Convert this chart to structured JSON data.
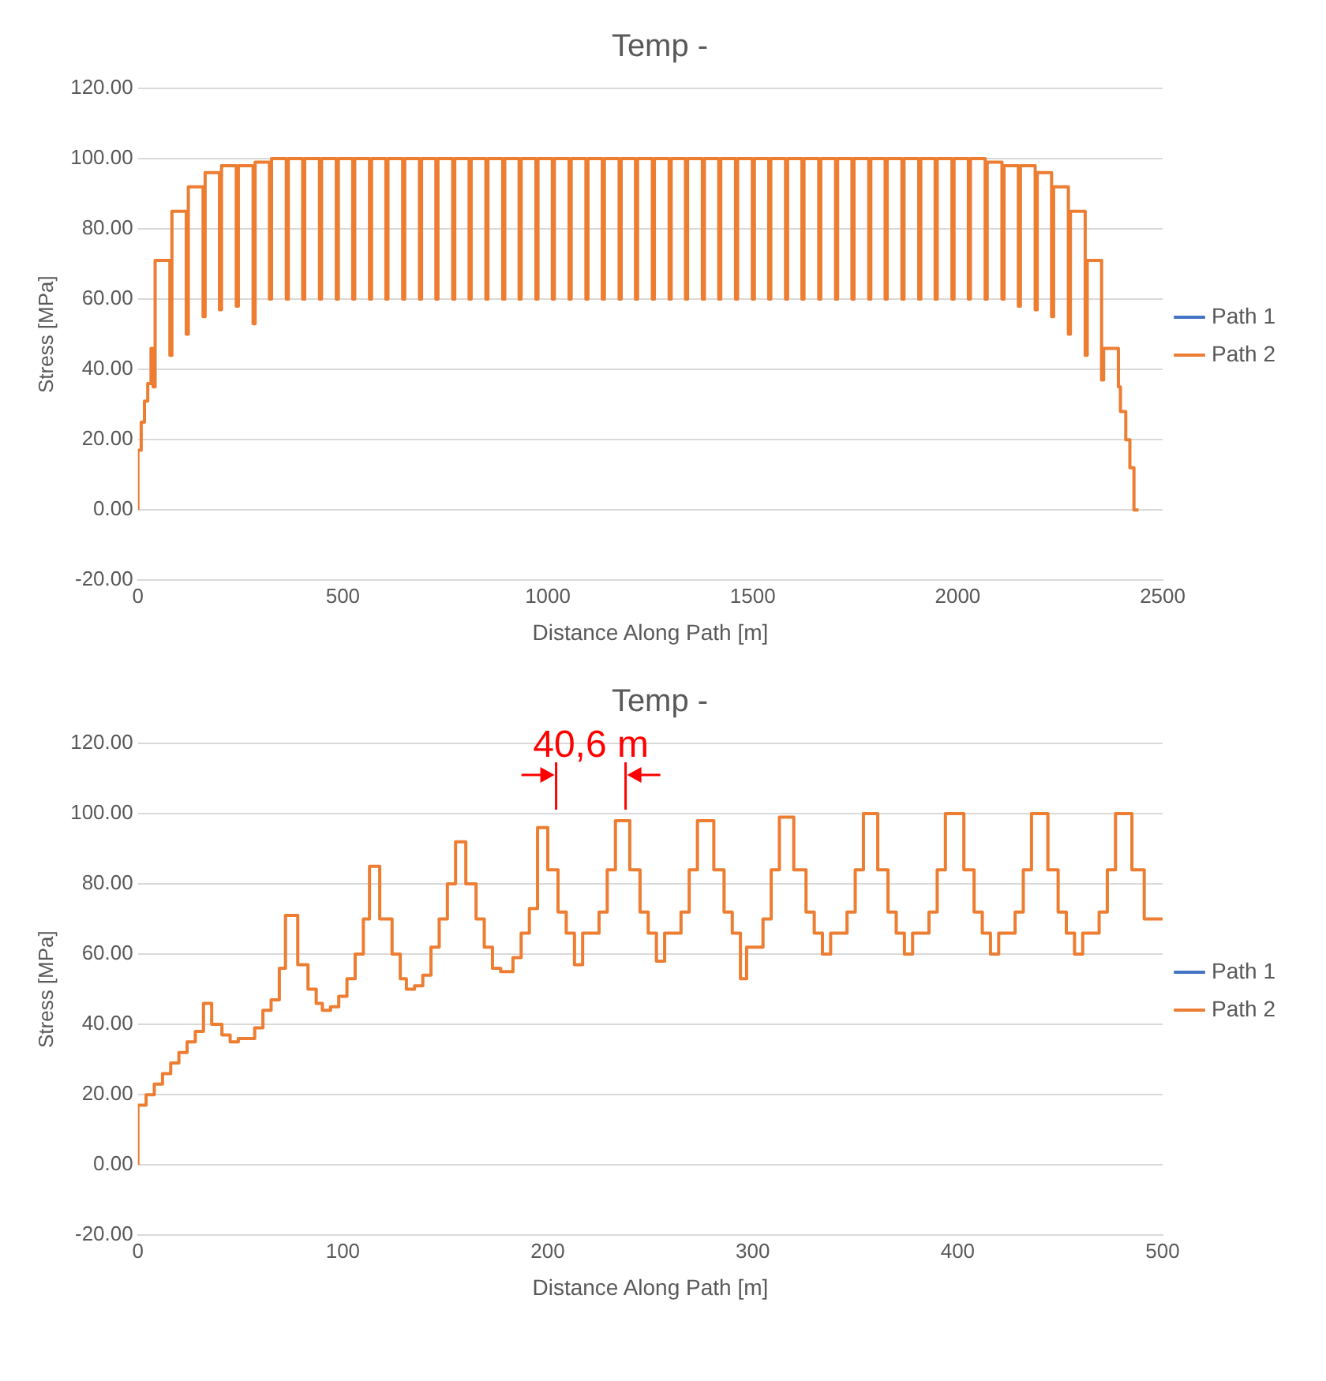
{
  "chart_data": [
    {
      "type": "step",
      "title": "Temp -",
      "xlabel": "Distance Along Path [m]",
      "ylabel": "Stress [MPa]",
      "xlim": [
        0,
        2500
      ],
      "xticks": [
        0,
        500,
        1000,
        1500,
        2000,
        2500
      ],
      "ylim": [
        -20,
        120
      ],
      "yticks": [
        {
          "value": -20,
          "label": "-20.00"
        },
        {
          "value": 0,
          "label": "0.00"
        },
        {
          "value": 20,
          "label": "20.00"
        },
        {
          "value": 40,
          "label": "40.00"
        },
        {
          "value": 60,
          "label": "60.00"
        },
        {
          "value": 80,
          "label": "80.00"
        },
        {
          "value": 100,
          "label": "100.00"
        },
        {
          "value": 120,
          "label": "120.00"
        }
      ],
      "grid": "y",
      "legend": "right",
      "marker": "none",
      "series": [
        {
          "name": "Path 1",
          "color": "#4472c4"
        },
        {
          "name": "Path 2",
          "color": "#ed7d31",
          "x": [
            0,
            8,
            16,
            24,
            32,
            37,
            42,
            78,
            83,
            118,
            123,
            159,
            164,
            199,
            204,
            240,
            245,
            281,
            286,
            321,
            326,
            362,
            367,
            402,
            407,
            443,
            448,
            484,
            489,
            524,
            529,
            565,
            570,
            605,
            610,
            646,
            651,
            687,
            692,
            727,
            732,
            768,
            773,
            808,
            813,
            849,
            854,
            890,
            895,
            930,
            935,
            971,
            976,
            1011,
            1016,
            1052,
            1057,
            1093,
            1098,
            1133,
            1138,
            1174,
            1179,
            1214,
            1219,
            1255,
            1260,
            1296,
            1301,
            1336,
            1341,
            1377,
            1382,
            1417,
            1422,
            1458,
            1463,
            1499,
            1504,
            1539,
            1544,
            1580,
            1585,
            1620,
            1625,
            1661,
            1666,
            1702,
            1707,
            1742,
            1747,
            1783,
            1788,
            1823,
            1828,
            1864,
            1869,
            1905,
            1910,
            1945,
            1950,
            1986,
            1991,
            2026,
            2031,
            2067,
            2072,
            2108,
            2113,
            2148,
            2153,
            2189,
            2194,
            2229,
            2234,
            2270,
            2275,
            2311,
            2316,
            2351,
            2356,
            2392,
            2397,
            2410,
            2420,
            2430,
            2441
          ],
          "values": [
            0,
            17,
            25,
            31,
            36,
            46,
            35,
            71,
            44,
            85,
            50,
            92,
            55,
            96,
            57,
            98,
            58,
            98,
            53,
            99,
            60,
            100,
            60,
            100,
            60,
            100,
            60,
            100,
            60,
            100,
            60,
            100,
            60,
            100,
            60,
            100,
            60,
            100,
            60,
            100,
            60,
            100,
            60,
            100,
            60,
            100,
            60,
            100,
            60,
            100,
            60,
            100,
            60,
            100,
            60,
            100,
            60,
            100,
            60,
            100,
            60,
            100,
            60,
            100,
            60,
            100,
            60,
            100,
            60,
            100,
            60,
            100,
            60,
            100,
            60,
            100,
            60,
            100,
            60,
            100,
            60,
            100,
            60,
            100,
            60,
            100,
            60,
            100,
            60,
            100,
            60,
            100,
            60,
            100,
            60,
            100,
            60,
            100,
            60,
            100,
            60,
            100,
            60,
            100,
            60,
            100,
            60,
            99,
            60,
            98,
            58,
            98,
            57,
            96,
            55,
            92,
            50,
            85,
            44,
            71,
            37,
            46,
            35,
            28,
            20,
            12,
            0
          ]
        }
      ]
    },
    {
      "type": "step",
      "title": "Temp -",
      "xlabel": "Distance Along Path [m]",
      "ylabel": "Stress [MPa]",
      "xlim": [
        0,
        500
      ],
      "xticks": [
        0,
        100,
        200,
        300,
        400,
        500
      ],
      "ylim": [
        -20,
        120
      ],
      "yticks": [
        {
          "value": -20,
          "label": "-20.00"
        },
        {
          "value": 0,
          "label": "0.00"
        },
        {
          "value": 20,
          "label": "20.00"
        },
        {
          "value": 40,
          "label": "40.00"
        },
        {
          "value": 60,
          "label": "60.00"
        },
        {
          "value": 80,
          "label": "80.00"
        },
        {
          "value": 100,
          "label": "100.00"
        },
        {
          "value": 120,
          "label": "120.00"
        }
      ],
      "grid": "y",
      "legend": "right",
      "marker": "none",
      "annotations": [
        "40,6 m"
      ],
      "series": [
        {
          "name": "Path 1",
          "color": "#4472c4"
        },
        {
          "name": "Path 2",
          "color": "#ed7d31",
          "x": [
            0,
            0,
            4,
            8,
            12,
            16,
            20,
            24,
            28,
            32,
            36,
            41,
            45,
            49,
            57,
            61,
            65,
            69,
            72,
            78,
            83,
            87,
            90,
            94,
            98,
            102,
            106,
            110,
            113,
            118,
            124,
            128,
            131,
            135,
            139,
            143,
            147,
            151,
            155,
            160,
            165,
            169,
            173,
            177,
            183,
            187,
            191,
            195,
            200,
            205,
            209,
            213,
            217,
            225,
            229,
            233,
            240,
            245,
            249,
            253,
            257,
            265,
            269,
            273,
            281,
            286,
            290,
            294,
            297,
            305,
            309,
            313,
            320,
            326,
            330,
            334,
            338,
            346,
            350,
            354,
            361,
            366,
            370,
            374,
            378,
            386,
            390,
            394,
            403,
            408,
            412,
            416,
            420,
            428,
            432,
            436,
            444,
            449,
            453,
            457,
            461,
            469,
            473,
            477,
            485,
            491,
            495,
            500
          ],
          "values": [
            0,
            10,
            17,
            20,
            23,
            26,
            29,
            32,
            35,
            38,
            46,
            40,
            37,
            35,
            36,
            39,
            44,
            47,
            56,
            71,
            57,
            50,
            46,
            44,
            45,
            48,
            53,
            60,
            70,
            85,
            70,
            60,
            53,
            50,
            51,
            54,
            62,
            70,
            80,
            92,
            80,
            70,
            62,
            56,
            55,
            59,
            66,
            73,
            96,
            84,
            72,
            66,
            57,
            66,
            72,
            84,
            98,
            84,
            72,
            66,
            58,
            66,
            72,
            84,
            98,
            84,
            72,
            66,
            53,
            62,
            70,
            84,
            99,
            84,
            72,
            66,
            60,
            66,
            72,
            84,
            100,
            84,
            72,
            66,
            60,
            66,
            72,
            84,
            100,
            84,
            72,
            66,
            60,
            66,
            72,
            84,
            100,
            84,
            72,
            66,
            60,
            66,
            72,
            84,
            100,
            84,
            70,
            70
          ]
        }
      ]
    }
  ]
}
